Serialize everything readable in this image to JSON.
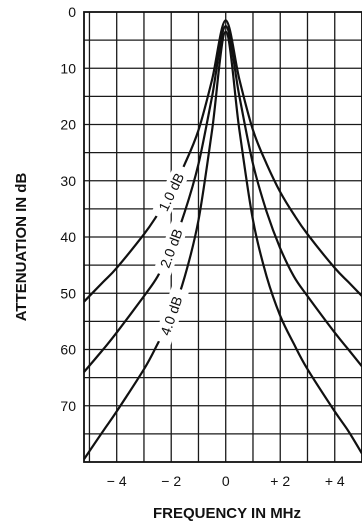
{
  "chart_data": {
    "type": "line",
    "xlabel": "FREQUENCY IN MHz",
    "ylabel": "ATTENUATION IN dB",
    "xlim": [
      -5.2,
      5.0
    ],
    "ylim": [
      0,
      80
    ],
    "y_inverted": true,
    "grid": true,
    "x_ticks": [
      {
        "value": -4,
        "label": "− 4"
      },
      {
        "value": -2,
        "label": "− 2"
      },
      {
        "value": 0,
        "label": "0"
      },
      {
        "value": 2,
        "label": "+ 2"
      },
      {
        "value": 4,
        "label": "+ 4"
      }
    ],
    "y_ticks": [
      {
        "value": 0,
        "label": "0"
      },
      {
        "value": 10,
        "label": "10"
      },
      {
        "value": 20,
        "label": "20"
      },
      {
        "value": 30,
        "label": "30"
      },
      {
        "value": 40,
        "label": "40"
      },
      {
        "value": 50,
        "label": "50"
      },
      {
        "value": 60,
        "label": "60"
      },
      {
        "value": 70,
        "label": "70"
      }
    ],
    "series": [
      {
        "name": "1.0 dB",
        "x": [
          -5.2,
          -4.5,
          -4,
          -3,
          -2.5,
          -2,
          -1.5,
          -1,
          -0.5,
          0,
          0.5,
          1,
          1.5,
          2,
          2.5,
          3,
          4,
          4.5,
          5
        ],
        "y": [
          51.5,
          48,
          45.5,
          39.5,
          36,
          32,
          27,
          21,
          12,
          1.5,
          12,
          21,
          27,
          32,
          36,
          39.5,
          45.5,
          48,
          50.5
        ]
      },
      {
        "name": "2.0 dB",
        "x": [
          -5.2,
          -4.5,
          -4,
          -3,
          -2.5,
          -2,
          -1.5,
          -1,
          -0.5,
          0,
          0.5,
          1,
          1.5,
          2,
          2.5,
          3,
          4,
          4.5,
          5
        ],
        "y": [
          64,
          60,
          57,
          50.5,
          47,
          42,
          35.5,
          27,
          15,
          2.5,
          15,
          27,
          35.5,
          42,
          47,
          50.5,
          57,
          60,
          63
        ]
      },
      {
        "name": "4.0 dB",
        "x": [
          -5.2,
          -4.5,
          -4,
          -3,
          -2.5,
          -2,
          -1.5,
          -1,
          -0.5,
          0,
          0.5,
          1,
          1.5,
          2,
          2.5,
          3,
          4,
          4.5,
          5
        ],
        "y": [
          79.5,
          74.5,
          71,
          63.5,
          59,
          54,
          47,
          37,
          21,
          3.5,
          21,
          37,
          47,
          54,
          59,
          63.5,
          71,
          74.5,
          78.5
        ]
      }
    ]
  },
  "label_anchors": [
    {
      "series": 0,
      "at_x": -2.0
    },
    {
      "series": 1,
      "at_x": -2.0
    },
    {
      "series": 2,
      "at_x": -2.0
    }
  ]
}
